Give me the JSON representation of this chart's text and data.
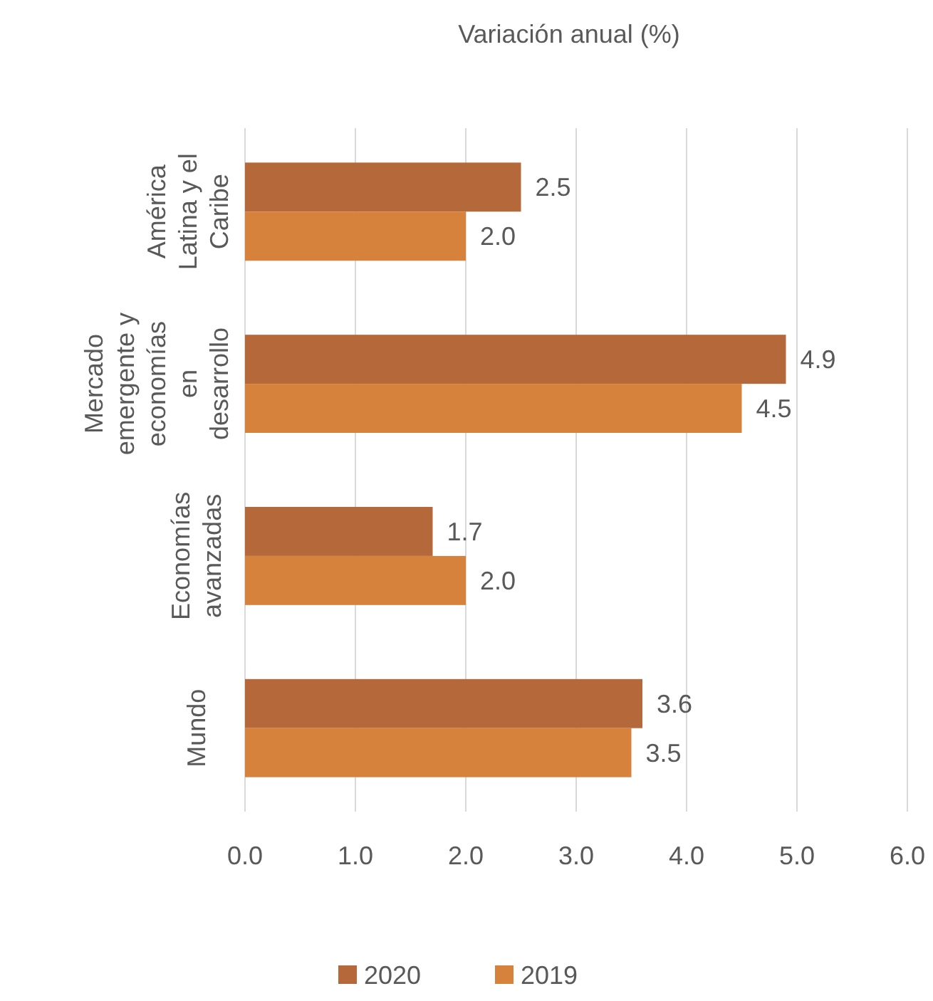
{
  "chart_data": {
    "type": "bar",
    "orientation": "horizontal",
    "title": "Variación anual (%)",
    "categories": [
      "América Latina y el Caribe",
      "Mercado emergente y economías en desarrollo",
      "Economías avanzadas",
      "Mundo"
    ],
    "series": [
      {
        "name": "2020",
        "color": "#b5693a",
        "values": [
          2.5,
          4.9,
          1.7,
          3.6
        ],
        "value_labels": [
          "2.5",
          "4.9",
          "1.7",
          "3.6"
        ]
      },
      {
        "name": "2019",
        "color": "#d6823c",
        "values": [
          2.0,
          4.5,
          2.0,
          3.5
        ],
        "value_labels": [
          "2.0",
          "4.5",
          "2.0",
          "3.5"
        ]
      }
    ],
    "xlim": [
      0,
      6
    ],
    "xticks": [
      {
        "value": 0,
        "label": "0.0"
      },
      {
        "value": 1,
        "label": "1.0"
      },
      {
        "value": 2,
        "label": "2.0"
      },
      {
        "value": 3,
        "label": "3.0"
      },
      {
        "value": 4,
        "label": "4.0"
      },
      {
        "value": 5,
        "label": "5.0"
      },
      {
        "value": 6,
        "label": "6.0"
      }
    ],
    "grid": "x",
    "legend": "bottom"
  }
}
